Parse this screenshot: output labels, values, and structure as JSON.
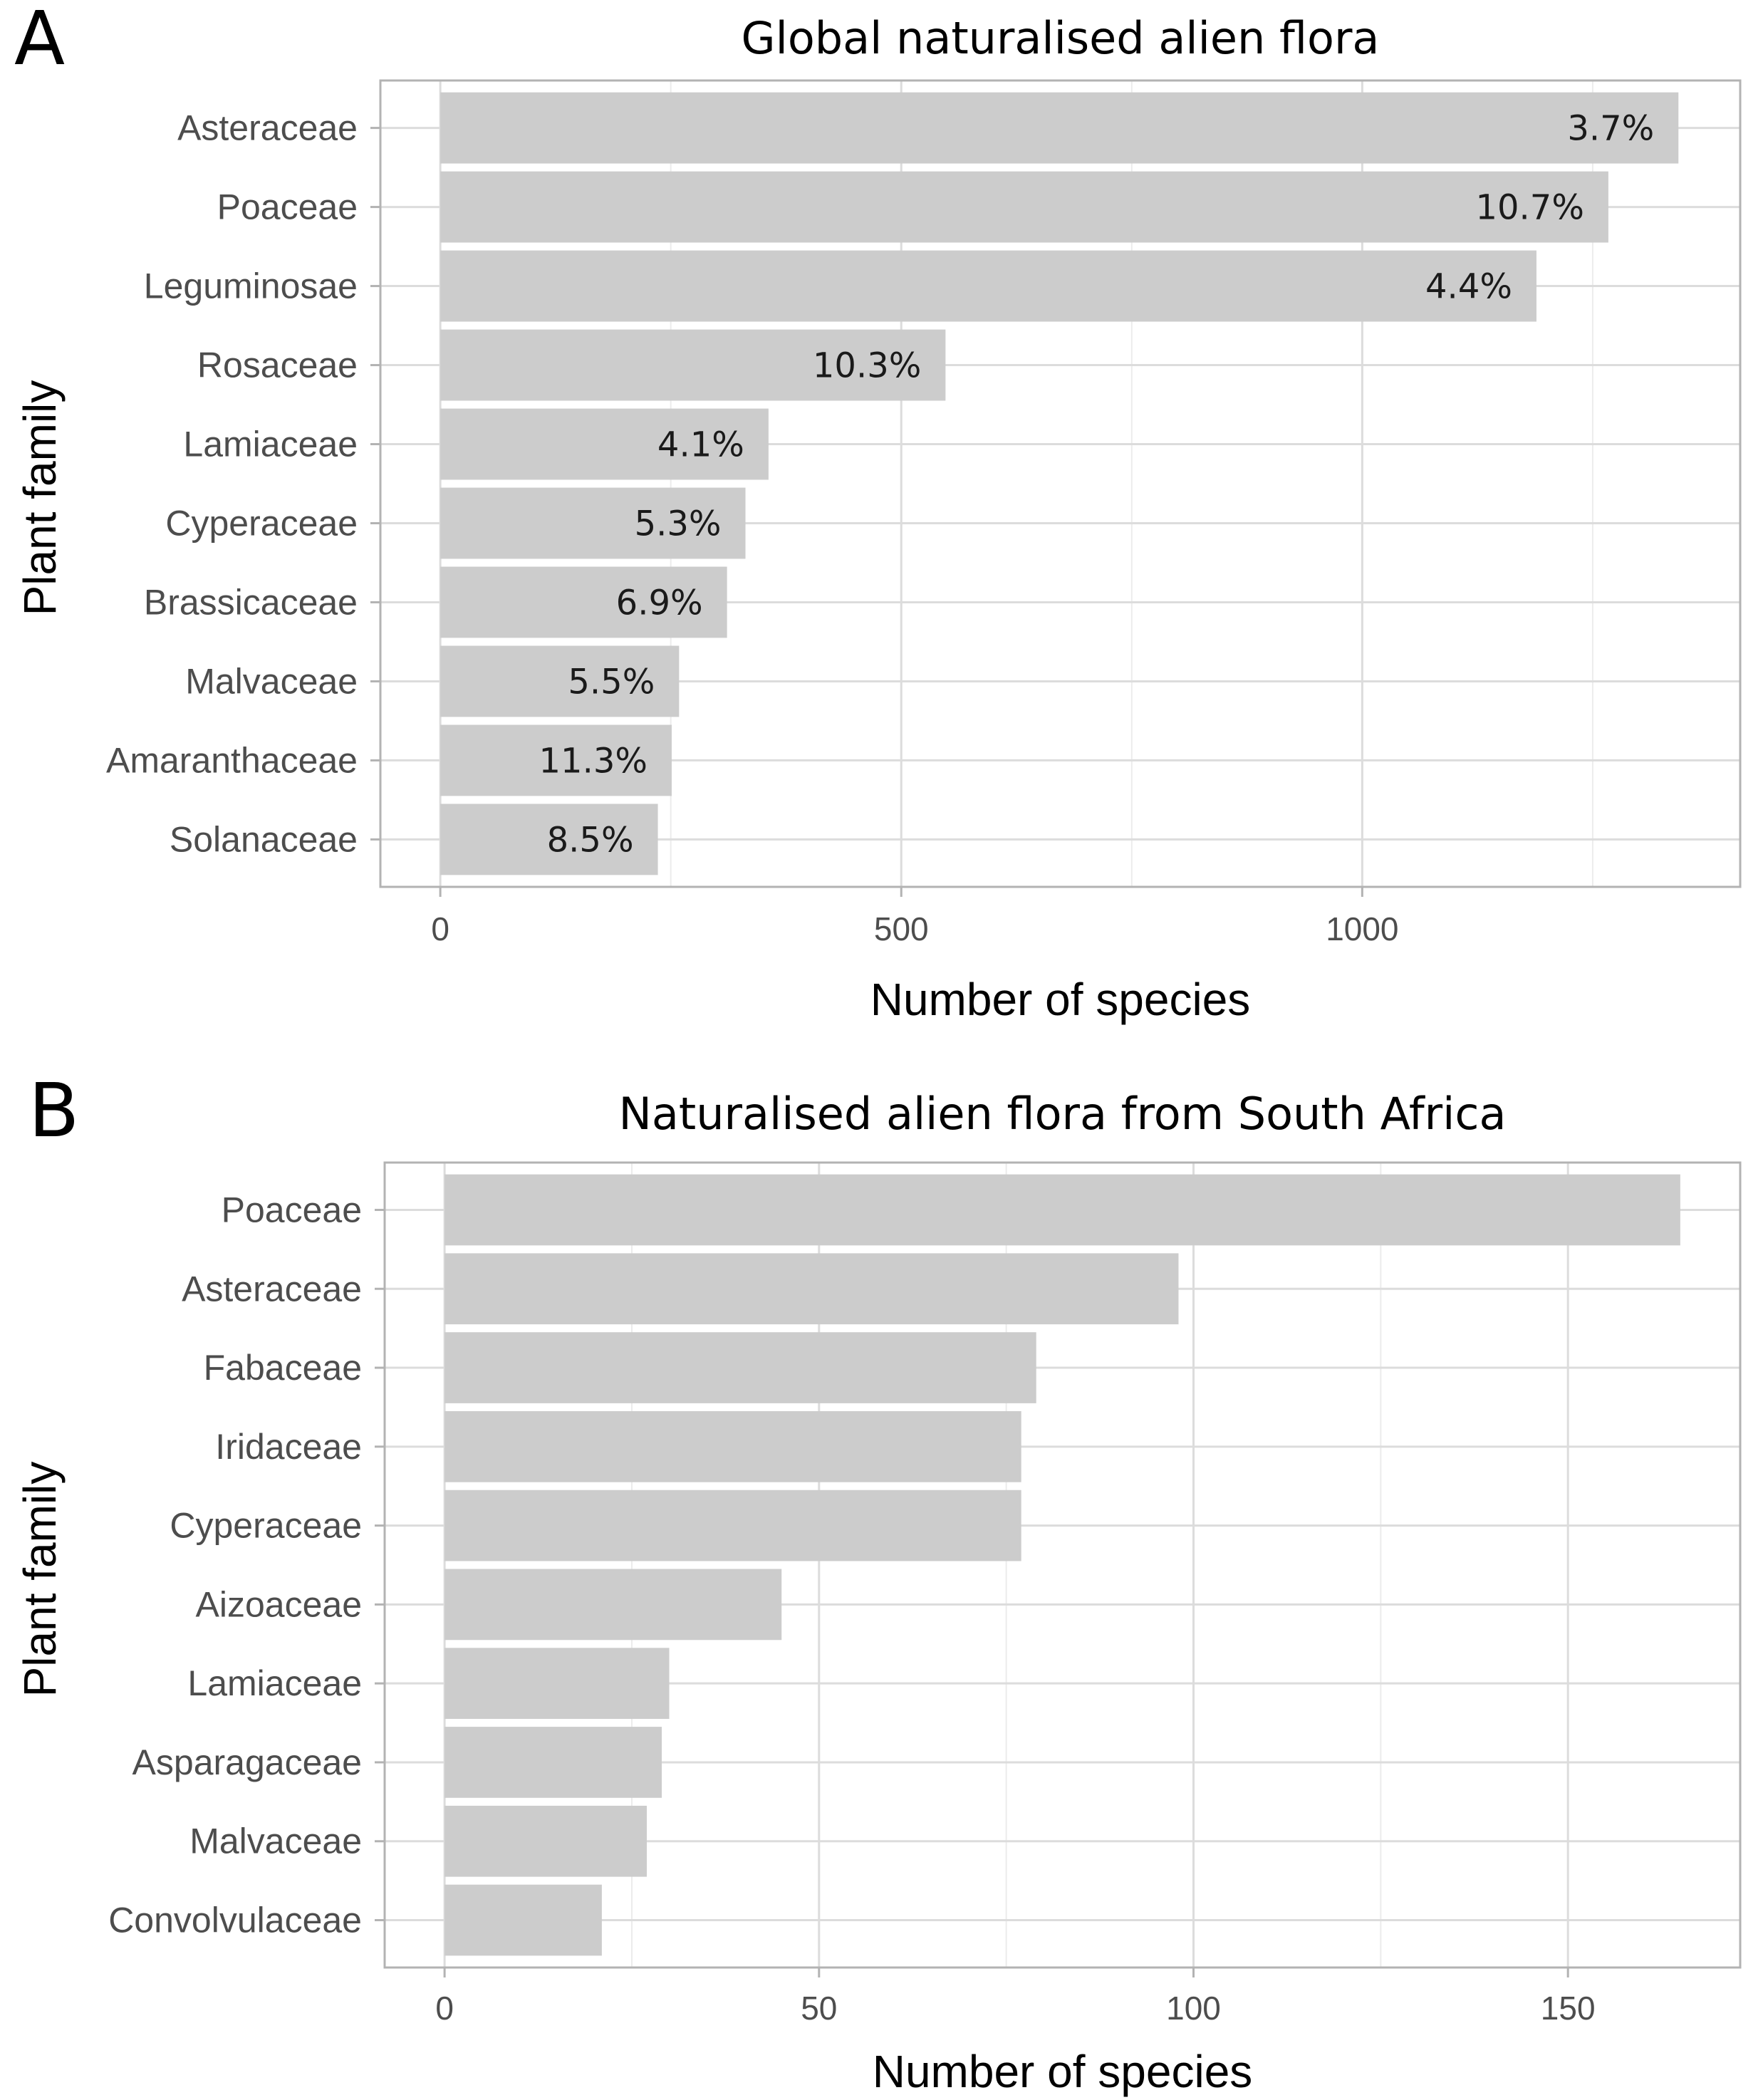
{
  "colors": {
    "bar": "#cccccc",
    "grid": "#dcdcdc",
    "border": "#b3b3b3",
    "text": "#4d4d4d"
  },
  "chart_data": [
    {
      "panel": "A",
      "type": "bar",
      "orientation": "horizontal",
      "title": "Global naturalised alien flora",
      "xlabel": "Number of species",
      "ylabel": "Plant family",
      "categories": [
        "Asteraceae",
        "Poaceae",
        "Leguminosae",
        "Rosaceae",
        "Lamiaceae",
        "Cyperaceae",
        "Brassicaceae",
        "Malvaceae",
        "Amaranthaceae",
        "Solanaceae"
      ],
      "values": [
        1343,
        1267,
        1189,
        548,
        356,
        331,
        311,
        259,
        251,
        236
      ],
      "labels": [
        "3.7%",
        "10.7%",
        "4.4%",
        "10.3%",
        "4.1%",
        "5.3%",
        "6.9%",
        "5.5%",
        "11.3%",
        "8.5%"
      ],
      "xlim": [
        -65,
        1410
      ],
      "xticks": [
        0,
        500,
        1000
      ],
      "xtick_labels": [
        "0",
        "500",
        "1000"
      ],
      "grid": true
    },
    {
      "panel": "B",
      "type": "bar",
      "orientation": "horizontal",
      "title": "Naturalised alien flora from South Africa",
      "xlabel": "Number of species",
      "ylabel": "Plant family",
      "categories": [
        "Poaceae",
        "Asteraceae",
        "Fabaceae",
        "Iridaceae",
        "Cyperaceae",
        "Aizoaceae",
        "Lamiaceae",
        "Asparagaceae",
        "Malvaceae",
        "Convolvulaceae"
      ],
      "values": [
        165,
        98,
        79,
        77,
        77,
        45,
        30,
        29,
        27,
        21
      ],
      "labels": [],
      "xlim": [
        -8,
        173
      ],
      "xticks": [
        0,
        50,
        100,
        150
      ],
      "xtick_labels": [
        "0",
        "50",
        "100",
        "150"
      ],
      "grid": true
    }
  ]
}
